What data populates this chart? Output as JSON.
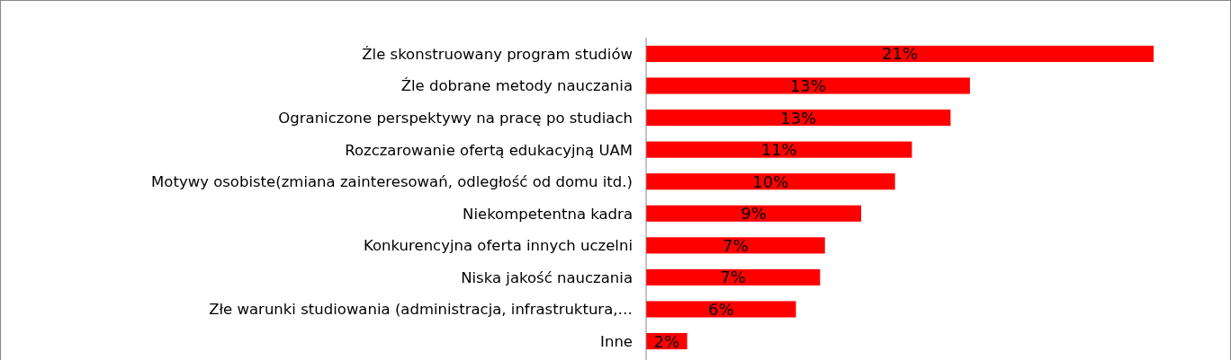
{
  "chart_data": {
    "type": "bar",
    "orientation": "horizontal",
    "categories": [
      "Źle skonstruowany program studiów",
      "Źle dobrane metody nauczania",
      "Ograniczone perspektywy na pracę po studiach",
      "Rozczarowanie ofertą edukacyjną UAM",
      "Motywy osobiste(zmiana zainteresowań, odległość od domu itd.)",
      "Niekompetentna kadra",
      "Konkurencyjna oferta innych uczelni",
      "Niska jakość nauczania",
      "Złe warunki studiowania (administracja, infrastruktura,…",
      "Inne"
    ],
    "values": [
      21,
      13.4,
      12.6,
      11,
      10.3,
      8.9,
      7.4,
      7.2,
      6.2,
      1.7
    ],
    "value_labels": [
      "21%",
      "13%",
      "13%",
      "11%",
      "10%",
      "9%",
      "7%",
      "7%",
      "6%",
      "2%"
    ],
    "color": "#ff0000"
  }
}
